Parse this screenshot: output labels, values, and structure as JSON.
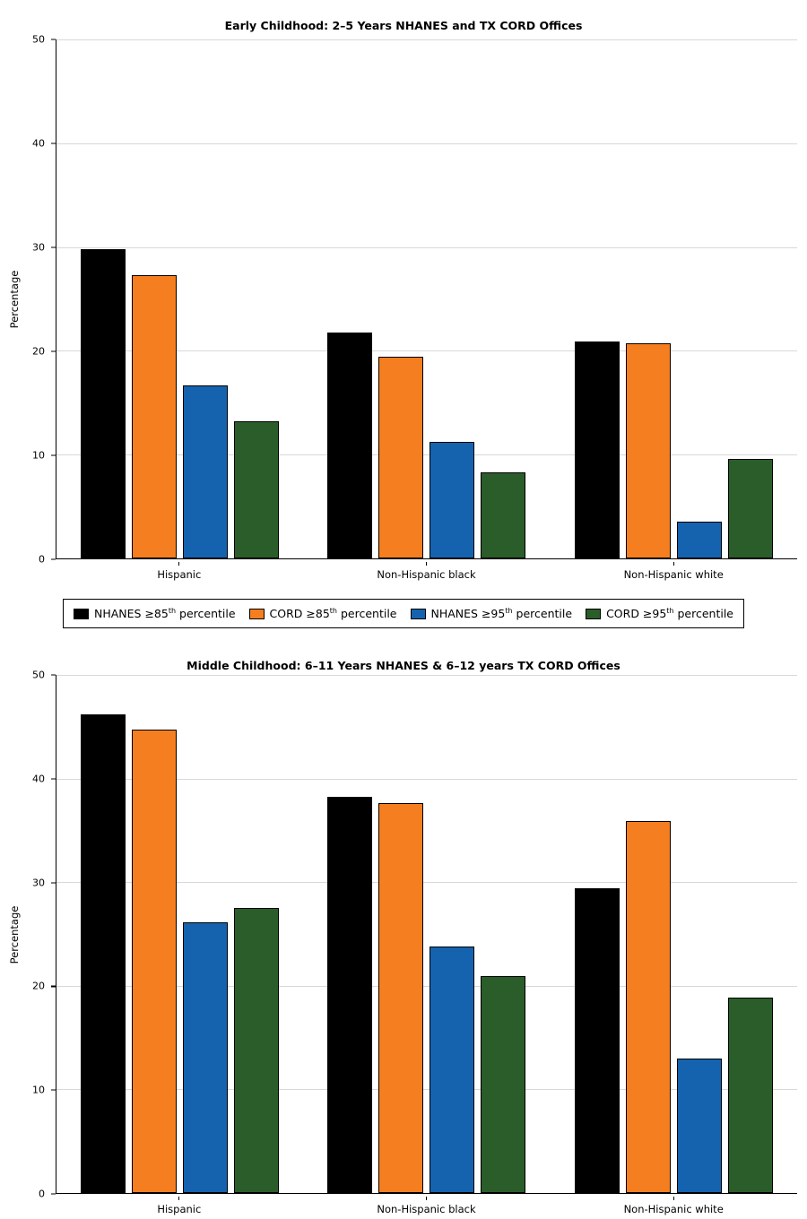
{
  "figure": {
    "background": "#ffffff"
  },
  "legend": {
    "items": [
      {
        "name": "NHANES ≥85th percentile",
        "prefix": "NHANES ≥85",
        "sup": "th",
        "suffix": " percentile",
        "color": "#000000"
      },
      {
        "name": "CORD ≥85th percentile",
        "prefix": "CORD ≥85",
        "sup": "th",
        "suffix": " percentile",
        "color": "#f57e20"
      },
      {
        "name": "NHANES ≥95th percentile",
        "prefix": "NHANES ≥95",
        "sup": "th",
        "suffix": " percentile",
        "color": "#1563af"
      },
      {
        "name": "CORD ≥95th percentile",
        "prefix": "CORD ≥95",
        "sup": "th",
        "suffix": " percentile",
        "color": "#2b5d2a"
      }
    ]
  },
  "chart_data": [
    {
      "type": "bar",
      "title": "Early Childhood: 2–5 Years NHANES and TX CORD Offices",
      "xlabel": "",
      "ylabel": "Percentage",
      "ylim": [
        0,
        50
      ],
      "yticks": [
        0,
        10,
        20,
        30,
        40,
        50
      ],
      "grid": true,
      "legend_position": "below",
      "categories": [
        "Hispanic",
        "Non-Hispanic black",
        "Non-Hispanic white"
      ],
      "series": [
        {
          "name": "NHANES ≥85th percentile",
          "color": "#000000",
          "values": [
            29.8,
            21.8,
            20.9
          ]
        },
        {
          "name": "CORD ≥85th percentile",
          "color": "#f57e20",
          "values": [
            27.3,
            19.4,
            20.7
          ]
        },
        {
          "name": "NHANES ≥95th percentile",
          "color": "#1563af",
          "values": [
            16.7,
            11.2,
            3.5
          ]
        },
        {
          "name": "CORD ≥95th percentile",
          "color": "#2b5d2a",
          "values": [
            13.2,
            8.3,
            9.6
          ]
        }
      ]
    },
    {
      "type": "bar",
      "title": "Middle Childhood: 6–11 Years NHANES & 6–12 years TX CORD Offices",
      "xlabel": "",
      "ylabel": "Percentage",
      "ylim": [
        0,
        50
      ],
      "yticks": [
        0,
        10,
        20,
        30,
        40,
        50
      ],
      "grid": true,
      "legend_position": "none",
      "categories": [
        "Hispanic",
        "Non-Hispanic black",
        "Non-Hispanic white"
      ],
      "series": [
        {
          "name": "NHANES ≥85th percentile",
          "color": "#000000",
          "values": [
            46.2,
            38.2,
            29.4
          ]
        },
        {
          "name": "CORD ≥85th percentile",
          "color": "#f57e20",
          "values": [
            44.7,
            37.6,
            35.9
          ]
        },
        {
          "name": "NHANES ≥95th percentile",
          "color": "#1563af",
          "values": [
            26.1,
            23.8,
            13.0
          ]
        },
        {
          "name": "CORD ≥95th percentile",
          "color": "#2b5d2a",
          "values": [
            27.5,
            20.9,
            18.9
          ]
        }
      ]
    }
  ]
}
